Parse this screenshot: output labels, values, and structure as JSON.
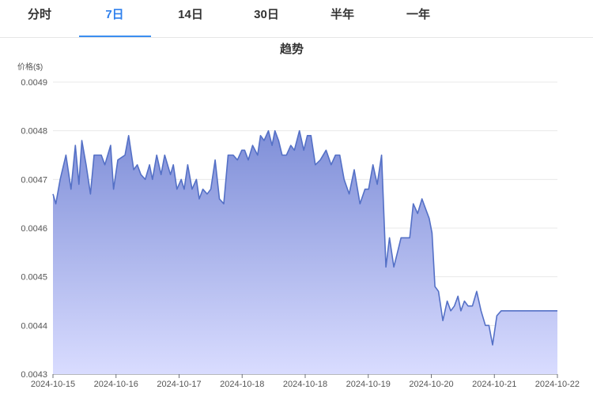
{
  "tabs": [
    {
      "label": "分时",
      "active": false
    },
    {
      "label": "7日",
      "active": true
    },
    {
      "label": "14日",
      "active": false
    },
    {
      "label": "30日",
      "active": false
    },
    {
      "label": "半年",
      "active": false
    },
    {
      "label": "一年",
      "active": false
    }
  ],
  "colors": {
    "accent": "#2f80ed",
    "line": "#5470c6",
    "area_top": "#7f8fd8",
    "area_bottom": "#d9dcff",
    "grid": "#e8e8e8"
  },
  "chart_data": {
    "type": "area",
    "title": "趋势",
    "ylabel": "价格($)",
    "ylim": [
      0.0043,
      0.0049
    ],
    "y_ticks": [
      "0.0049",
      "0.0048",
      "0.0047",
      "0.0046",
      "0.0045",
      "0.0044",
      "0.0043"
    ],
    "x_ticks": [
      "2024-10-15",
      "2024-10-16",
      "2024-10-17",
      "2024-10-18",
      "2024-10-18",
      "2024-10-19",
      "2024-10-20",
      "2024-10-21",
      "2024-10-22"
    ],
    "grid": true,
    "series": [
      {
        "x": [
          0.0,
          0.04,
          0.1,
          0.18,
          0.25,
          0.31,
          0.36,
          0.4,
          0.46,
          0.52,
          0.57,
          0.6,
          0.67,
          0.72,
          0.8,
          0.84,
          0.9,
          1.0,
          1.05,
          1.12,
          1.17,
          1.22,
          1.28,
          1.34,
          1.38,
          1.44,
          1.5,
          1.55,
          1.63,
          1.67,
          1.72,
          1.78,
          1.82,
          1.87,
          1.93,
          1.99,
          2.03,
          2.08,
          2.14,
          2.19,
          2.25,
          2.31,
          2.37,
          2.43,
          2.5,
          2.56,
          2.62,
          2.66,
          2.71,
          2.77,
          2.84,
          2.88,
          2.93,
          2.99,
          3.04,
          3.08,
          3.13,
          3.18,
          3.24,
          3.3,
          3.35,
          3.42,
          3.48,
          3.53,
          3.58,
          3.64,
          3.71,
          3.79,
          3.86,
          3.92,
          3.98,
          4.04,
          4.11,
          4.18,
          4.26,
          4.33,
          4.38,
          4.44,
          4.5,
          4.56,
          4.62,
          4.67,
          4.73,
          4.78,
          4.83,
          4.89,
          4.95,
          5.0,
          5.06,
          5.12,
          5.17,
          5.22,
          5.26,
          5.3,
          5.35,
          5.41,
          5.47,
          5.52,
          5.57,
          5.62,
          5.66,
          5.71,
          5.76,
          5.82,
          5.88,
          5.94,
          6.0,
          6.05,
          6.1,
          6.16,
          6.22,
          6.28,
          6.34,
          6.4,
          6.46,
          6.52,
          6.57,
          6.62,
          6.68,
          6.74,
          6.8,
          6.86,
          6.92,
          6.98,
          7.0
        ],
        "values": [
          0.00467,
          0.00465,
          0.0047,
          0.00475,
          0.00468,
          0.00477,
          0.00469,
          0.00478,
          0.00473,
          0.00467,
          0.00475,
          0.00475,
          0.00475,
          0.00473,
          0.00477,
          0.00468,
          0.00474,
          0.00475,
          0.00479,
          0.00472,
          0.00473,
          0.00471,
          0.0047,
          0.00473,
          0.0047,
          0.00475,
          0.00471,
          0.00475,
          0.00471,
          0.00473,
          0.00468,
          0.0047,
          0.00468,
          0.00473,
          0.00468,
          0.0047,
          0.00466,
          0.00468,
          0.00467,
          0.00468,
          0.00474,
          0.00466,
          0.00465,
          0.00475,
          0.00475,
          0.00474,
          0.00476,
          0.00476,
          0.00474,
          0.00477,
          0.00475,
          0.00479,
          0.00478,
          0.0048,
          0.00477,
          0.0048,
          0.00478,
          0.00475,
          0.00475,
          0.00477,
          0.00476,
          0.0048,
          0.00476,
          0.00479,
          0.00479,
          0.00473,
          0.00474,
          0.00476,
          0.00473,
          0.00475,
          0.00475,
          0.0047,
          0.00467,
          0.00472,
          0.00465,
          0.00468,
          0.00468,
          0.00473,
          0.00469,
          0.00475,
          0.00452,
          0.00458,
          0.00452,
          0.00455,
          0.00458,
          0.00458,
          0.00458,
          0.00465,
          0.00463,
          0.00466,
          0.00464,
          0.00462,
          0.00459,
          0.00448,
          0.00447,
          0.00441,
          0.00445,
          0.00443,
          0.00444,
          0.00446,
          0.00443,
          0.00445,
          0.00444,
          0.00444,
          0.00447,
          0.00443,
          0.0044,
          0.0044,
          0.00436,
          0.00442,
          0.00443,
          0.00443,
          0.00443,
          0.00443,
          0.00443,
          0.00443,
          0.00443,
          0.00443,
          0.00443,
          0.00443,
          0.00443,
          0.00443,
          0.00443,
          0.00443,
          0.00443
        ]
      }
    ]
  }
}
